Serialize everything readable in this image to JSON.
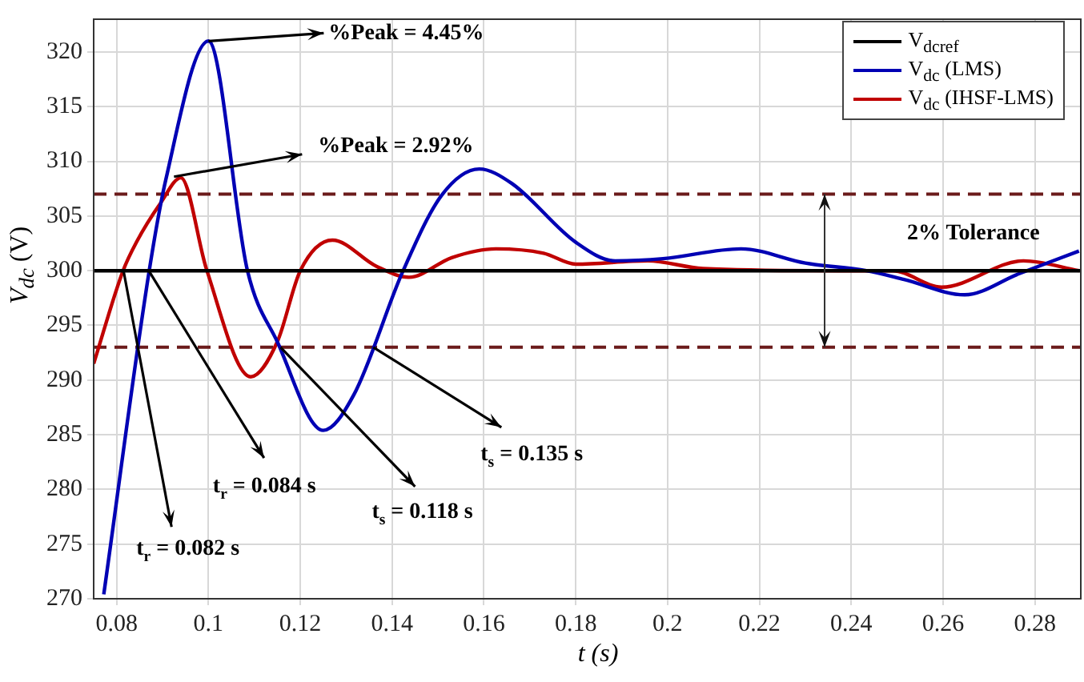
{
  "chart_data": {
    "type": "line",
    "xlabel": "t (s)",
    "ylabel": "V$_{dc}$ (V)",
    "xlim": [
      0.075,
      0.29
    ],
    "xticks": [
      0.08,
      0.1,
      0.12,
      0.14,
      0.16,
      0.18,
      0.2,
      0.22,
      0.24,
      0.26,
      0.28
    ],
    "ylim": [
      270,
      323
    ],
    "yticks": [
      270,
      275,
      280,
      285,
      290,
      295,
      300,
      305,
      310,
      315,
      320
    ],
    "grid": true,
    "legend": "top right",
    "marker": "none",
    "line_style": "solid",
    "series": [
      {
        "name": "V$_{dcref}$",
        "color": "#000000",
        "x": [
          0.075,
          0.29
        ],
        "values": [
          300,
          300
        ]
      },
      {
        "name": "V$_{dc}$ (LMS)",
        "color": "#0000b4",
        "x": [
          0.0772,
          0.0871,
          0.0907,
          0.1,
          0.1085,
          0.115,
          0.125,
          0.1316,
          0.1424,
          0.1508,
          0.159,
          0.166,
          0.18,
          0.1886,
          0.199,
          0.216,
          0.23,
          0.2433,
          0.2515,
          0.2647,
          0.2764,
          0.2896
        ],
        "values": [
          270.4,
          300,
          308.3,
          321,
          300,
          293.5,
          285.4,
          288.6,
          300,
          306.9,
          309.3,
          308,
          302.6,
          300.9,
          301.1,
          302,
          300.7,
          300,
          299.2,
          297.8,
          299.7,
          301.8
        ]
      },
      {
        "name": "V$_{dc}$ (IHSF-LMS)",
        "color": "#c00000",
        "x": [
          0.075,
          0.0814,
          0.0843,
          0.0896,
          0.094,
          0.0996,
          0.1092,
          0.115,
          0.12,
          0.127,
          0.1366,
          0.1437,
          0.153,
          0.1626,
          0.173,
          0.18,
          0.1957,
          0.2077,
          0.237,
          0.249,
          0.2597,
          0.2775,
          0.2896
        ],
        "values": [
          291.5,
          300,
          302.6,
          306.2,
          308.5,
          300.1,
          290.3,
          293.5,
          300,
          302.8,
          300.4,
          299.4,
          301.2,
          302,
          301.6,
          300.6,
          300.9,
          300.2,
          300,
          300,
          298.5,
          300.9,
          300
        ]
      }
    ],
    "ref_lines": [
      {
        "axis": "y",
        "value": 307,
        "color": "#6b1b1b",
        "line_style": "dashed"
      },
      {
        "axis": "y",
        "value": 293,
        "color": "#6b1b1b",
        "line_style": "dashed"
      }
    ],
    "annotations": [
      {
        "text": "%Peak = 4.45%",
        "x": 0.1,
        "y": 321
      },
      {
        "text": "%Peak = 2.92%",
        "x": 0.0925,
        "y": 308.6
      },
      {
        "text": "t$_{r}$ = 0.082 s",
        "x": 0.0815,
        "y": 300
      },
      {
        "text": "t$_{r}$ = 0.084 s",
        "x": 0.087,
        "y": 300
      },
      {
        "text": "t$_{s}$ = 0.118 s",
        "x": 0.1157,
        "y": 293
      },
      {
        "text": "t$_{s}$ = 0.135 s",
        "x": 0.1359,
        "y": 293
      },
      "2% Tolerance"
    ]
  }
}
